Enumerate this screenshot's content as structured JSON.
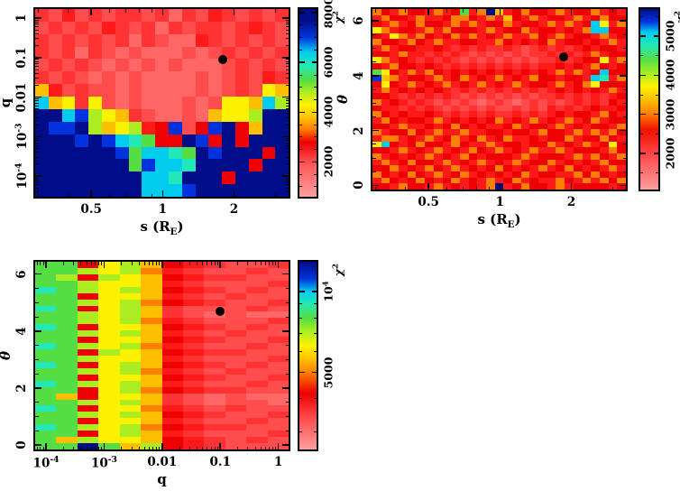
{
  "colors": {
    "background": "#ffffff",
    "frame": "#000000",
    "marker": "#000000"
  },
  "palette": {
    "0": "#ff9999",
    "1": "#ff7f7f",
    "2": "#ff6666",
    "3": "#ff4d4d",
    "4": "#ff3333",
    "5": "#ff1a1a",
    "6": "#ee0000",
    "7": "#ff7f00",
    "8": "#ffbf00",
    "9": "#fff200",
    "a": "#aaee22",
    "b": "#55dd44",
    "c": "#22e8b8",
    "d": "#00ccee",
    "e": "#0033dd",
    "f": "#000d88"
  },
  "chart_data": [
    {
      "id": "chi2-map-q-vs-s",
      "type": "heatmap",
      "xaxis": {
        "label": "s (R_{E})",
        "scale": "log",
        "min": 0.29,
        "max": 3.4,
        "ticks": [
          {
            "v": 0.5,
            "l": "0.5"
          },
          {
            "v": 1,
            "l": "1"
          },
          {
            "v": 2,
            "l": "2"
          }
        ]
      },
      "yaxis": {
        "label": "q",
        "scale": "log",
        "min": 3e-05,
        "max": 1.7,
        "ticks": [
          {
            "v": 1,
            "l": "1"
          },
          {
            "v": 0.1,
            "l": "0.1"
          },
          {
            "v": 0.01,
            "l": "0.01"
          },
          {
            "v": 0.001,
            "l": "10^{-3}"
          },
          {
            "v": 0.0001,
            "l": "10^{-4}"
          }
        ]
      },
      "colorbar": {
        "label": "χ^{2}",
        "scale": "linear",
        "min": 600,
        "max": 8150,
        "ticks": [
          {
            "v": 2000,
            "l": "2000"
          },
          {
            "v": 4000,
            "l": "4000"
          },
          {
            "v": 6000,
            "l": "6000"
          },
          {
            "v": 8000,
            "l": "8000"
          }
        ],
        "minor_start": 1000,
        "minor_step": 500,
        "stops": [
          [
            0,
            "#ff9f9f"
          ],
          [
            18,
            "#ff5555"
          ],
          [
            29,
            "#ee0000"
          ],
          [
            36,
            "#ff7f00"
          ],
          [
            42,
            "#ffbf00"
          ],
          [
            49,
            "#fff200"
          ],
          [
            56,
            "#aaee22"
          ],
          [
            62,
            "#55dd44"
          ],
          [
            70,
            "#22e8b8"
          ],
          [
            77,
            "#00ccee"
          ],
          [
            85,
            "#0033dd"
          ],
          [
            94,
            "#000d88"
          ],
          [
            100,
            "#000d88"
          ]
        ]
      },
      "marker": {
        "x": 1.8,
        "y": 0.09
      },
      "grid": [
        "4353434434243543434",
        "3434354342434434543",
        "4343434243225434343",
        "4342432322232343434",
        "3434323232322234343",
        "4343232322223234354",
        "8534332322223234398",
        "d894932322232399 8da",
        "ffdea98432232899aff",
        "feefa89a56e36ef68ff",
        "fffefedcb66fe6f6fff",
        "ffffffebddcbfefff6f",
        "fffffffbeddcffff6ff",
        "ffffffffddcfff6ffff",
        "ffffffffdddefffffff"
      ]
    },
    {
      "id": "chi2-map-theta-vs-s",
      "type": "heatmap",
      "xaxis": {
        "label": "s (R_{E})",
        "scale": "log",
        "min": 0.29,
        "max": 3.4,
        "ticks": [
          {
            "v": 0.5,
            "l": "0.5"
          },
          {
            "v": 1,
            "l": "1"
          },
          {
            "v": 2,
            "l": "2"
          }
        ]
      },
      "yaxis": {
        "label": "θ",
        "scale": "linear",
        "min": -0.15,
        "max": 6.43,
        "minor_step": 0.5,
        "ticks": [
          {
            "v": 0,
            "l": "0"
          },
          {
            "v": 2,
            "l": "2"
          },
          {
            "v": 4,
            "l": "4"
          },
          {
            "v": 6,
            "l": "6"
          }
        ]
      },
      "colorbar": {
        "label": "χ^{2}",
        "scale": "linear",
        "min": 1080,
        "max": 5690,
        "ticks": [
          {
            "v": 2000,
            "l": "2000"
          },
          {
            "v": 3000,
            "l": "3000"
          },
          {
            "v": 4000,
            "l": "4000"
          },
          {
            "v": 5000,
            "l": "5000"
          }
        ],
        "minor_start": 1500,
        "minor_step": 500,
        "stops": [
          [
            0,
            "#ff9f9f"
          ],
          [
            20,
            "#ff4444"
          ],
          [
            33,
            "#ee1100"
          ],
          [
            42,
            "#ff7f00"
          ],
          [
            50,
            "#ffbf00"
          ],
          [
            57,
            "#fff200"
          ],
          [
            64,
            "#aaee22"
          ],
          [
            72,
            "#55dd44"
          ],
          [
            80,
            "#22e8b8"
          ],
          [
            87,
            "#00ccee"
          ],
          [
            93,
            "#0033dd"
          ],
          [
            100,
            "#000d88"
          ]
        ]
      },
      "marker": {
        "x": 1.85,
        "y": 4.7
      },
      "grid": [
        "7657665756b57f856766575667565",
        "57665755677657586575665756766",
        "6575676657575667566575756d957",
        "9756657576665756675665657dd66",
        "65975765675756575576575665756",
        "76657657556655765656756656575",
        "57566556545454454345454565665",
        "66575545454343434344545457566",
        "97565454543434343434454566957",
        "65766565454545454545565657656",
        "b9657576565656565656575756d66",
        "e875665756756575657665665dc57",
        "69657565756575657566575679666",
        "57565656545454545454565656575",
        "66545454543434343434454545456",
        "75654543434323432343434545465",
        "65545454343434334343545456556",
        "76565565454545445454565665765",
        "57656657565656756575657567566",
        "66575565676565567566575656657",
        "75667657557556656657665757576",
        "57756575675675675565667566765",
        "9d656766576557566566756575696",
        "66575657565765756575575666576",
        "75656575657656665756665757657",
        "57567665756575657566756565766",
        "66756576575656765657567656575",
        "76567657567565656756655767656",
        "57656765675657567565576575767",
        "66576657565657f56766575666656"
      ]
    },
    {
      "id": "chi2-map-theta-vs-q",
      "type": "heatmap",
      "xaxis": {
        "label": "q",
        "scale": "log",
        "min": 6.5e-05,
        "max": 1.5,
        "ticks": [
          {
            "v": 0.0001,
            "l": "10^{-4}"
          },
          {
            "v": 0.001,
            "l": "10^{-3}"
          },
          {
            "v": 0.01,
            "l": "0.01"
          },
          {
            "v": 0.1,
            "l": "0.1"
          },
          {
            "v": 1,
            "l": "1"
          }
        ]
      },
      "yaxis": {
        "label": "θ",
        "scale": "linear",
        "min": -0.15,
        "max": 6.43,
        "minor_step": 0.5,
        "ticks": [
          {
            "v": 0,
            "l": "0"
          },
          {
            "v": 2,
            "l": "2"
          },
          {
            "v": 4,
            "l": "4"
          },
          {
            "v": 6,
            "l": "6"
          }
        ]
      },
      "colorbar": {
        "label": "χ^{2}",
        "scale": "log",
        "min": 2580,
        "max": 12940,
        "ticks": [
          {
            "v": 5000,
            "l": "5000"
          },
          {
            "v": 10000,
            "l": "10^{4}"
          }
        ],
        "stops": [
          [
            0,
            "#ff9f9f"
          ],
          [
            18,
            "#ff4444"
          ],
          [
            30,
            "#ee0000"
          ],
          [
            41,
            "#ff7f00"
          ],
          [
            48,
            "#ffbf00"
          ],
          [
            55,
            "#fff200"
          ],
          [
            63,
            "#aaee22"
          ],
          [
            70,
            "#55dd44"
          ],
          [
            78,
            "#22e8b8"
          ],
          [
            84,
            "#00ccee"
          ],
          [
            91,
            "#0033dd"
          ],
          [
            100,
            "#000d88"
          ]
        ]
      },
      "marker": {
        "x": 0.1,
        "y": 4.7
      },
      "grid": [
        "bb69a8654334",
        "bba9a7543343",
        "ba6a98654433",
        "bba998543334",
        "cba9a8654343",
        "bb6998543433",
        "bba9a7654334",
        "cb69a8433343",
        "bba9a8432322",
        "bba9a7543334",
        "cb6998654343",
        "bba9a8543433",
        "bb6998654334",
        "cba9a7543343",
        "bb6a98654433",
        "bba998543334",
        "cb69a8654343",
        "bba9a7543433",
        "bb6998654334",
        "cba9a8543343",
        "bb69a7654433",
        "b86998432322",
        "bba9a8432332",
        "cb6997543433",
        "bba9a8654334",
        "bb6998543343",
        "cba9a7654433",
        "bb69a8543334",
        "b8a998654343",
        "bbfb8a654333"
      ]
    }
  ]
}
